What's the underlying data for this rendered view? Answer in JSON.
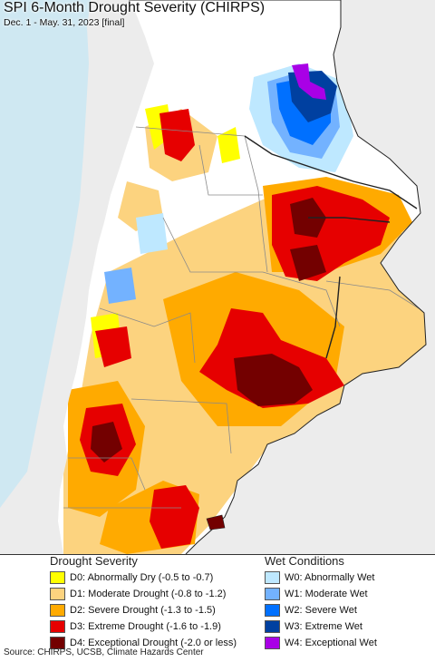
{
  "map": {
    "title": "SPI 6-Month Drought Severity (CHIRPS)",
    "subtitle": "Dec. 1 - May. 31, 2023 [final]",
    "colors": {
      "ocean": "#cfe8f2",
      "land_outside": "#ececec",
      "no_drought": "#ffffff",
      "border": "#8a8a8a"
    }
  },
  "legend_drought": {
    "title": "Drought Severity",
    "items": [
      {
        "label": "D0: Abnormally Dry (-0.5 to -0.7)",
        "color": "#ffff00"
      },
      {
        "label": "D1: Moderate Drought (-0.8 to -1.2)",
        "color": "#fcd37f"
      },
      {
        "label": "D2: Severe Drought (-1.3 to -1.5)",
        "color": "#ffaa00"
      },
      {
        "label": "D3: Extreme Drought (-1.6 to -1.9)",
        "color": "#e60000"
      },
      {
        "label": "D4: Exceptional Drought (-2.0 or less)",
        "color": "#730000"
      }
    ]
  },
  "legend_wet": {
    "title": "Wet Conditions",
    "items": [
      {
        "label": "W0: Abnormally Wet",
        "color": "#bee8ff"
      },
      {
        "label": "W1: Moderate Wet",
        "color": "#73b2ff"
      },
      {
        "label": "W2: Severe Wet",
        "color": "#0070ff"
      },
      {
        "label": "W3: Extreme Wet",
        "color": "#0040a0"
      },
      {
        "label": "W4: Exceptional Wet",
        "color": "#a900e6"
      }
    ]
  },
  "source": "Source: CHIRPS, UCSB, Climate Hazards Center"
}
